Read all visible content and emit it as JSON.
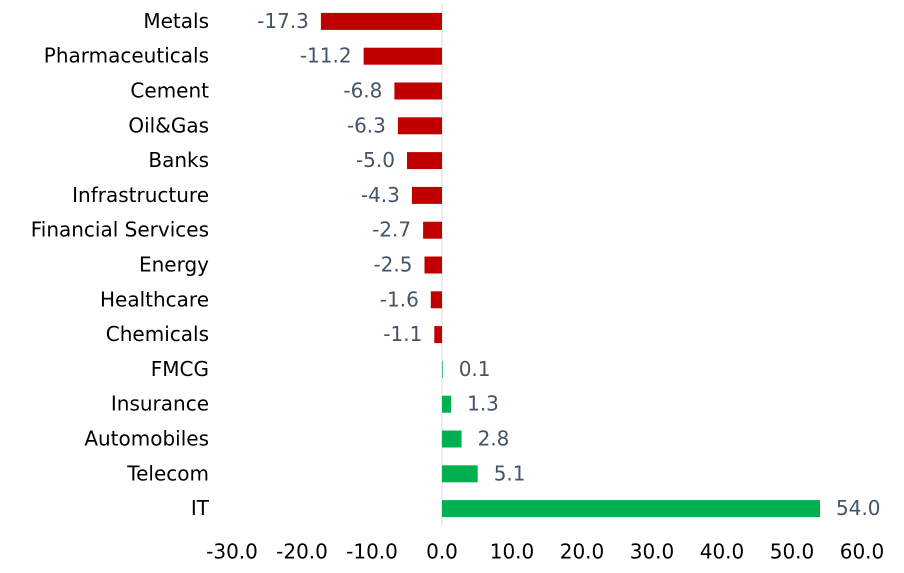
{
  "chart_data": {
    "type": "hbar",
    "categories": [
      "Metals",
      "Pharmaceuticals",
      "Cement",
      "Oil&Gas",
      "Banks",
      "Infrastructure",
      "Financial Services",
      "Energy",
      "Healthcare",
      "Chemicals",
      "FMCG",
      "Insurance",
      "Automobiles",
      "Telecom",
      "IT"
    ],
    "values": [
      -17.3,
      -11.2,
      -6.8,
      -6.3,
      -5.0,
      -4.3,
      -2.7,
      -2.5,
      -1.6,
      -1.1,
      0.1,
      1.3,
      2.8,
      5.1,
      54.0
    ],
    "value_labels": [
      "-17.3",
      "-11.2",
      "-6.8",
      "-6.3",
      "-5.0",
      "-4.3",
      "-2.7",
      "-2.5",
      "-1.6",
      "-1.1",
      "0.1",
      "1.3",
      "2.8",
      "5.1",
      "54.0"
    ],
    "negative_color": "#c00000",
    "positive_color": "#00b050",
    "xlim": [
      -30,
      60
    ],
    "xticks": [
      {
        "value": -30,
        "label": "-30.0"
      },
      {
        "value": -20,
        "label": "-20.0"
      },
      {
        "value": -10,
        "label": "-10.0"
      },
      {
        "value": 0,
        "label": "0.0"
      },
      {
        "value": 10,
        "label": "10.0"
      },
      {
        "value": 20,
        "label": "20.0"
      },
      {
        "value": 30,
        "label": "30.0"
      },
      {
        "value": 40,
        "label": "40.0"
      },
      {
        "value": 50,
        "label": "50.0"
      },
      {
        "value": 60,
        "label": "60.0"
      }
    ],
    "grid": false
  }
}
